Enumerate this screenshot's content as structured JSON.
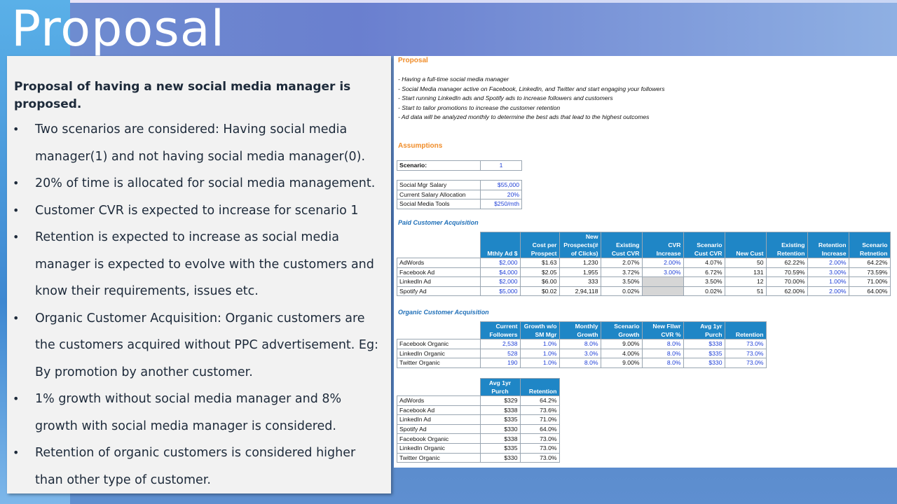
{
  "slide_title": "Proposal",
  "left_panel": {
    "lead": "Proposal of having a new social media manager is proposed.",
    "bullets": [
      "Two scenarios are considered: Having social media manager(1) and not having social media manager(0).",
      "20% of time is allocated for social media management.",
      "Customer CVR is expected to increase for scenario 1",
      "Retention is expected to increase as social media manager is expected to evolve with the customers and know their requirements, issues etc.",
      "Organic Customer Acquisition: Organic customers are the customers acquired without PPC advertisement. Eg: By promotion by another customer.",
      "1% growth without social media manager and 8% growth with social media manager is considered.",
      "Retention of organic customers is considered higher than other type of customer."
    ]
  },
  "sheet": {
    "proposal_heading": "Proposal",
    "proposal_lines": [
      "- Having a full-time social media manager",
      "- Social Media manager active on Facebook, LinkedIn, and Twitter and start engaging your followers",
      "- Start running LinkedIn ads and Spotify ads to increase followers and customers",
      "- Start to tailor promotions to increase the customer retention",
      "- Ad data will be analyzed monthly to determine the best ads that lead to the highest outcomes"
    ],
    "assumptions_heading": "Assumptions",
    "scenario": {
      "label": "Scenario:",
      "value": "1"
    },
    "assumptions": [
      {
        "label": "Social Mgr Salary",
        "value": "$55,000"
      },
      {
        "label": "Current Salary Allocation",
        "value": "20%"
      },
      {
        "label": "Social Media Tools",
        "value": "$250/mth"
      }
    ],
    "paid": {
      "heading": "Paid Customer Acquisition",
      "headers": [
        "Mthly Ad $",
        "Cost per Prospect",
        "New Prospects(# of Clicks)",
        "Existing Cust CVR",
        "CVR Increase",
        "Scenario Cust CVR",
        "New Cust",
        "Existing Retention",
        "Retention Increase",
        "Scenario Retnetion"
      ],
      "rows": [
        {
          "name": "AdWords",
          "cells": [
            "$2,000",
            "$1.63",
            "1,230",
            "2.07%",
            "2.00%",
            "4.07%",
            "50",
            "62.22%",
            "2.00%",
            "64.22%"
          ]
        },
        {
          "name": "Facebook Ad",
          "cells": [
            "$4,000",
            "$2.05",
            "1,955",
            "3.72%",
            "3.00%",
            "6.72%",
            "131",
            "70.59%",
            "3.00%",
            "73.59%"
          ]
        },
        {
          "name": "LinkedIn Ad",
          "cells": [
            "$2,000",
            "$6.00",
            "333",
            "3.50%",
            "",
            "3.50%",
            "12",
            "70.00%",
            "1.00%",
            "71.00%"
          ]
        },
        {
          "name": "Spotify Ad",
          "cells": [
            "$5,000",
            "$0.02",
            "2,94,118",
            "0.02%",
            "",
            "0.02%",
            "51",
            "62.00%",
            "2.00%",
            "64.00%"
          ]
        }
      ]
    },
    "organic": {
      "heading": "Organic Customer Acquisition",
      "headers": [
        "Current Followers",
        "Growth w/o SM Mgr",
        "Monthly Growth",
        "Scenario Growth",
        "New Fllwr CVR %",
        "Avg 1yr Purch",
        "Retention"
      ],
      "rows": [
        {
          "name": "Facebook Organic",
          "cells": [
            "2,538",
            "1.0%",
            "8.0%",
            "9.00%",
            "8.0%",
            "$338",
            "73.0%"
          ]
        },
        {
          "name": "LinkedIn Organic",
          "cells": [
            "528",
            "1.0%",
            "3.0%",
            "4.00%",
            "8.0%",
            "$335",
            "73.0%"
          ]
        },
        {
          "name": "Twitter Organic",
          "cells": [
            "190",
            "1.0%",
            "8.0%",
            "9.00%",
            "8.0%",
            "$330",
            "73.0%"
          ]
        }
      ]
    },
    "summary": {
      "headers": [
        "Avg 1yr Purch",
        "Retention"
      ],
      "rows": [
        {
          "name": "AdWords",
          "cells": [
            "$329",
            "64.2%"
          ]
        },
        {
          "name": "Facebook Ad",
          "cells": [
            "$338",
            "73.6%"
          ]
        },
        {
          "name": "LinkedIn Ad",
          "cells": [
            "$335",
            "71.0%"
          ]
        },
        {
          "name": "Spotify Ad",
          "cells": [
            "$330",
            "64.0%"
          ]
        },
        {
          "name": "Facebook Organic",
          "cells": [
            "$338",
            "73.0%"
          ]
        },
        {
          "name": "LinkedIn Organic",
          "cells": [
            "$335",
            "73.0%"
          ]
        },
        {
          "name": "Twitter Organic",
          "cells": [
            "$330",
            "73.0%"
          ]
        }
      ]
    }
  },
  "colors": {
    "header_blue": "#1f86c6",
    "orange_heading": "#f08c28",
    "input_blue": "#1e3fd6"
  }
}
